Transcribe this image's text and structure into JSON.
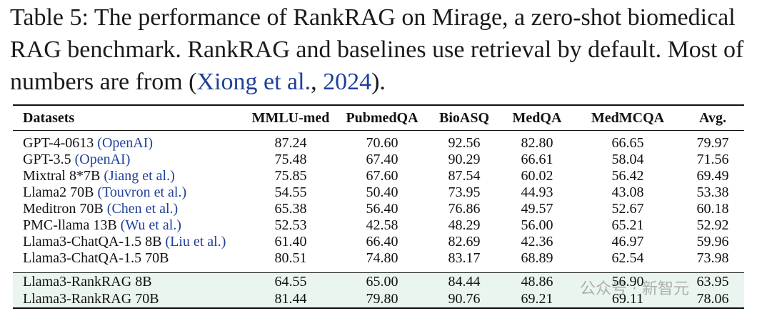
{
  "caption": {
    "text_before": "Table 5: The performance of RankRAG on Mirage, a zero-shot biomedical RAG benchmark. RankRAG and baselines use retrieval by default. Most of numbers are from (",
    "cite_author": "Xiong et al.",
    "cite_sep": ", ",
    "cite_year": "2024",
    "text_after": ")."
  },
  "columns": [
    "Datasets",
    "MMLU-med",
    "PubmedQA",
    "BioASQ",
    "MedQA",
    "MedMCQA",
    "Avg."
  ],
  "baseline_rows": [
    {
      "model": "GPT-4-0613 ",
      "cite": "(OpenAI)",
      "values": [
        "87.24",
        "70.60",
        "92.56",
        "82.80",
        "66.65",
        "79.97"
      ]
    },
    {
      "model": "GPT-3.5 ",
      "cite": "(OpenAI)",
      "values": [
        "75.48",
        "67.40",
        "90.29",
        "66.61",
        "58.04",
        "71.56"
      ]
    },
    {
      "model": "Mixtral 8*7B ",
      "cite": "(Jiang et al.)",
      "values": [
        "75.85",
        "67.60",
        "87.54",
        "60.02",
        "56.42",
        "69.49"
      ]
    },
    {
      "model": "Llama2 70B ",
      "cite": "(Touvron et al.)",
      "values": [
        "54.55",
        "50.40",
        "73.95",
        "44.93",
        "43.08",
        "53.38"
      ]
    },
    {
      "model": "Meditron 70B ",
      "cite": "(Chen et al.)",
      "values": [
        "65.38",
        "56.40",
        "76.86",
        "49.57",
        "52.67",
        "60.18"
      ]
    },
    {
      "model": "PMC-llama 13B ",
      "cite": "(Wu et al.)",
      "values": [
        "52.53",
        "42.58",
        "48.29",
        "56.00",
        "65.21",
        "52.92"
      ]
    },
    {
      "model": "Llama3-ChatQA-1.5 8B ",
      "cite": "(Liu et al.)",
      "values": [
        "61.40",
        "66.40",
        "82.69",
        "42.36",
        "46.97",
        "59.96"
      ]
    },
    {
      "model": "Llama3-ChatQA-1.5 70B",
      "cite": "",
      "values": [
        "80.51",
        "74.80",
        "83.17",
        "68.89",
        "62.54",
        "73.98"
      ]
    }
  ],
  "rankrag_rows": [
    {
      "model": "Llama3-RankRAG 8B",
      "values": [
        "64.55",
        "65.00",
        "84.44",
        "48.86",
        "56.90",
        "63.95"
      ]
    },
    {
      "model": "Llama3-RankRAG 70B",
      "values": [
        "81.44",
        "79.80",
        "90.76",
        "69.21",
        "69.11",
        "78.06"
      ]
    }
  ],
  "watermark": "公众号 · 新智元",
  "colors": {
    "link": "#1f3f9a",
    "highlight_bg": "#e9f5ee"
  }
}
